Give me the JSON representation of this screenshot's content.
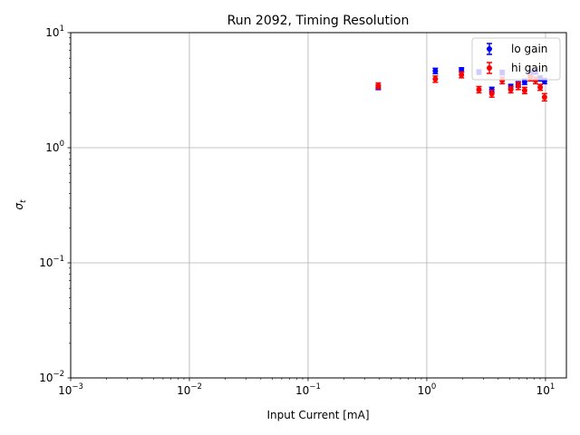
{
  "chart_data": {
    "type": "scatter",
    "title": "Run 2092, Timing Resolution",
    "xlabel": "Input Current [mA]",
    "ylabel_base": "σ",
    "ylabel_sub": "t",
    "xscale": "log",
    "yscale": "log",
    "xlim": [
      0.001,
      15
    ],
    "ylim": [
      0.01,
      10
    ],
    "grid": true,
    "legend_position": "top-right",
    "x_ticks": [
      {
        "base": "10",
        "exp": "−3",
        "value": 0.001
      },
      {
        "base": "10",
        "exp": "−2",
        "value": 0.01
      },
      {
        "base": "10",
        "exp": "−1",
        "value": 0.1
      },
      {
        "base": "10",
        "exp": "0",
        "value": 1
      },
      {
        "base": "10",
        "exp": "1",
        "value": 10
      }
    ],
    "y_ticks": [
      {
        "base": "10",
        "exp": "−2",
        "value": 0.01
      },
      {
        "base": "10",
        "exp": "−1",
        "value": 0.1
      },
      {
        "base": "10",
        "exp": "0",
        "value": 1
      },
      {
        "base": "10",
        "exp": "1",
        "value": 10
      }
    ],
    "series": [
      {
        "name": "lo gain",
        "color": "#0000ff",
        "points": [
          {
            "x": 0.39,
            "y": 3.35,
            "err": 0.15
          },
          {
            "x": 1.18,
            "y": 4.65,
            "err": 0.25
          },
          {
            "x": 1.96,
            "y": 4.75,
            "err": 0.2
          },
          {
            "x": 2.75,
            "y": 4.55,
            "err": 0.2
          },
          {
            "x": 3.53,
            "y": 3.2,
            "err": 0.15
          },
          {
            "x": 4.32,
            "y": 4.5,
            "err": 0.2
          },
          {
            "x": 5.1,
            "y": 3.4,
            "err": 0.15
          },
          {
            "x": 5.89,
            "y": 3.55,
            "err": 0.2
          },
          {
            "x": 6.67,
            "y": 3.75,
            "err": 0.2
          },
          {
            "x": 7.46,
            "y": 4.45,
            "err": 0.2
          },
          {
            "x": 8.24,
            "y": 4.55,
            "err": 0.2
          },
          {
            "x": 9.03,
            "y": 4.0,
            "err": 0.2
          },
          {
            "x": 9.81,
            "y": 3.8,
            "err": 0.2
          }
        ]
      },
      {
        "name": "hi gain",
        "color": "#ff0000",
        "points": [
          {
            "x": 0.39,
            "y": 3.45,
            "err": 0.2
          },
          {
            "x": 1.18,
            "y": 3.95,
            "err": 0.25
          },
          {
            "x": 1.96,
            "y": 4.3,
            "err": 0.25
          },
          {
            "x": 2.75,
            "y": 3.2,
            "err": 0.2
          },
          {
            "x": 3.53,
            "y": 2.95,
            "err": 0.2
          },
          {
            "x": 4.32,
            "y": 3.85,
            "err": 0.25
          },
          {
            "x": 5.1,
            "y": 3.2,
            "err": 0.2
          },
          {
            "x": 5.89,
            "y": 3.45,
            "err": 0.25
          },
          {
            "x": 6.67,
            "y": 3.15,
            "err": 0.2
          },
          {
            "x": 7.46,
            "y": 4.05,
            "err": 0.25
          },
          {
            "x": 8.24,
            "y": 3.85,
            "err": 0.25
          },
          {
            "x": 9.03,
            "y": 3.35,
            "err": 0.2
          },
          {
            "x": 9.81,
            "y": 2.75,
            "err": 0.2
          }
        ]
      }
    ]
  }
}
